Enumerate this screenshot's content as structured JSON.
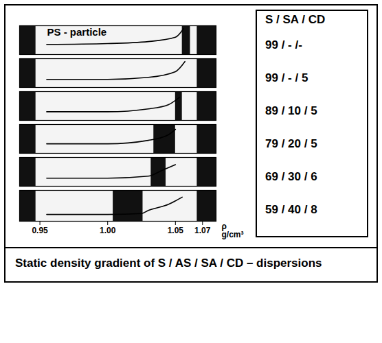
{
  "chart_data": {
    "type": "line",
    "title": "Static density gradient of S / AS / SA / CD – dispersions",
    "xlabel": "ρ g/cm³",
    "legend_title": "S / SA / CD",
    "legend": "right",
    "annotations": [
      "PS - particle"
    ],
    "xlim": [
      0.935,
      1.08
    ],
    "xticks": [
      0.95,
      {
        "value": 1,
        "label": "1.00"
      },
      1.05,
      1.07
    ],
    "ylim": [
      0,
      1
    ],
    "tick_labels": "x",
    "color": "#111111",
    "series": [
      {
        "name": "99 / - /-",
        "color": "#000000",
        "x": [
          0.955,
          1.0,
          1.03,
          1.05,
          1.056
        ],
        "values": [
          0.35,
          0.38,
          0.45,
          0.6,
          0.9
        ],
        "bands": [
          [
            0.935,
            0.947
          ],
          [
            1.055,
            1.061
          ],
          [
            1.066,
            1.08
          ]
        ]
      },
      {
        "name": "99 / - / 5",
        "color": "#000000",
        "x": [
          0.955,
          1.0,
          1.03,
          1.05,
          1.057
        ],
        "values": [
          0.28,
          0.28,
          0.35,
          0.55,
          0.9
        ],
        "bands": [
          [
            0.935,
            0.947
          ],
          [
            1.066,
            1.08
          ]
        ]
      },
      {
        "name": "89 / 10 / 5",
        "color": "#000000",
        "x": [
          0.955,
          1.0,
          1.03,
          1.045,
          1.053
        ],
        "values": [
          0.3,
          0.3,
          0.4,
          0.55,
          0.8
        ],
        "bands": [
          [
            0.935,
            0.947
          ],
          [
            1.05,
            1.055
          ],
          [
            1.066,
            1.08
          ]
        ]
      },
      {
        "name": "79 / 20 / 5",
        "color": "#000000",
        "x": [
          0.955,
          1.0,
          1.03,
          1.045,
          1.05
        ],
        "values": [
          0.33,
          0.33,
          0.45,
          0.65,
          0.83
        ],
        "bands": [
          [
            0.935,
            0.947
          ],
          [
            1.034,
            1.05
          ],
          [
            1.066,
            1.08
          ]
        ]
      },
      {
        "name": "69 / 30 / 6",
        "color": "#000000",
        "x": [
          0.955,
          1.0,
          1.03,
          1.04,
          1.05
        ],
        "values": [
          0.28,
          0.28,
          0.35,
          0.55,
          0.75
        ],
        "bands": [
          [
            0.935,
            0.947
          ],
          [
            1.032,
            1.043
          ],
          [
            1.066,
            1.08
          ]
        ]
      },
      {
        "name": "59 / 40 / 8",
        "color": "#000000",
        "x": [
          0.955,
          1.0,
          1.025,
          1.03,
          1.045,
          1.055
        ],
        "values": [
          0.22,
          0.22,
          0.25,
          0.35,
          0.55,
          0.78
        ],
        "bands": [
          [
            0.935,
            0.947
          ],
          [
            1.004,
            1.026
          ],
          [
            1.066,
            1.08
          ]
        ]
      }
    ]
  }
}
